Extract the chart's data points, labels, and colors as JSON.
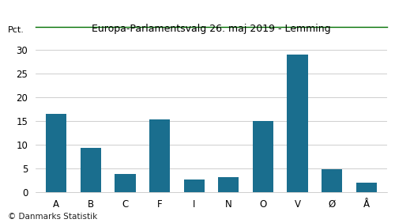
{
  "title": "Europa-Parlamentsvalg 26. maj 2019 - Lemming",
  "categories": [
    "A",
    "B",
    "C",
    "F",
    "I",
    "N",
    "O",
    "V",
    "Ø",
    "Å"
  ],
  "values": [
    16.5,
    9.3,
    3.8,
    15.2,
    2.6,
    3.1,
    15.0,
    28.9,
    4.8,
    1.9
  ],
  "bar_color": "#1a6e8e",
  "ylabel": "Pct.",
  "ylim": [
    0,
    32
  ],
  "yticks": [
    0,
    5,
    10,
    15,
    20,
    25,
    30
  ],
  "footer": "© Danmarks Statistik",
  "title_color": "#000000",
  "grid_color": "#bbbbbb",
  "top_line_color": "#007000",
  "background_color": "#ffffff",
  "title_fontsize": 9.0,
  "tick_fontsize": 8.5,
  "footer_fontsize": 7.5
}
